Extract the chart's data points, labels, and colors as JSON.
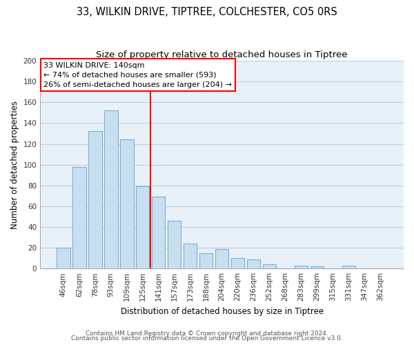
{
  "title": "33, WILKIN DRIVE, TIPTREE, COLCHESTER, CO5 0RS",
  "subtitle": "Size of property relative to detached houses in Tiptree",
  "xlabel": "Distribution of detached houses by size in Tiptree",
  "ylabel": "Number of detached properties",
  "bar_labels": [
    "46sqm",
    "62sqm",
    "78sqm",
    "93sqm",
    "109sqm",
    "125sqm",
    "141sqm",
    "157sqm",
    "173sqm",
    "188sqm",
    "204sqm",
    "220sqm",
    "236sqm",
    "252sqm",
    "268sqm",
    "283sqm",
    "299sqm",
    "315sqm",
    "331sqm",
    "347sqm",
    "362sqm"
  ],
  "bar_values": [
    20,
    98,
    132,
    152,
    124,
    79,
    69,
    46,
    24,
    15,
    19,
    10,
    9,
    4,
    0,
    3,
    2,
    0,
    3,
    0,
    0
  ],
  "bar_color": "#c8dff0",
  "bar_edge_color": "#7ab0d4",
  "highlight_line_index": 6,
  "annotation_text1": "33 WILKIN DRIVE: 140sqm",
  "annotation_text2": "← 74% of detached houses are smaller (593)",
  "annotation_text3": "26% of semi-detached houses are larger (204) →",
  "ylim": [
    0,
    200
  ],
  "yticks": [
    0,
    20,
    40,
    60,
    80,
    100,
    120,
    140,
    160,
    180,
    200
  ],
  "footer1": "Contains HM Land Registry data © Crown copyright and database right 2024.",
  "footer2": "Contains public sector information licensed under the Open Government Licence v3.0.",
  "title_fontsize": 10.5,
  "subtitle_fontsize": 9.5,
  "axis_label_fontsize": 8.5,
  "tick_fontsize": 7.5,
  "annotation_fontsize": 8,
  "footer_fontsize": 6.5,
  "background_color": "#ffffff",
  "plot_bg_color": "#e8f0f8",
  "grid_color": "#c0cfe0"
}
